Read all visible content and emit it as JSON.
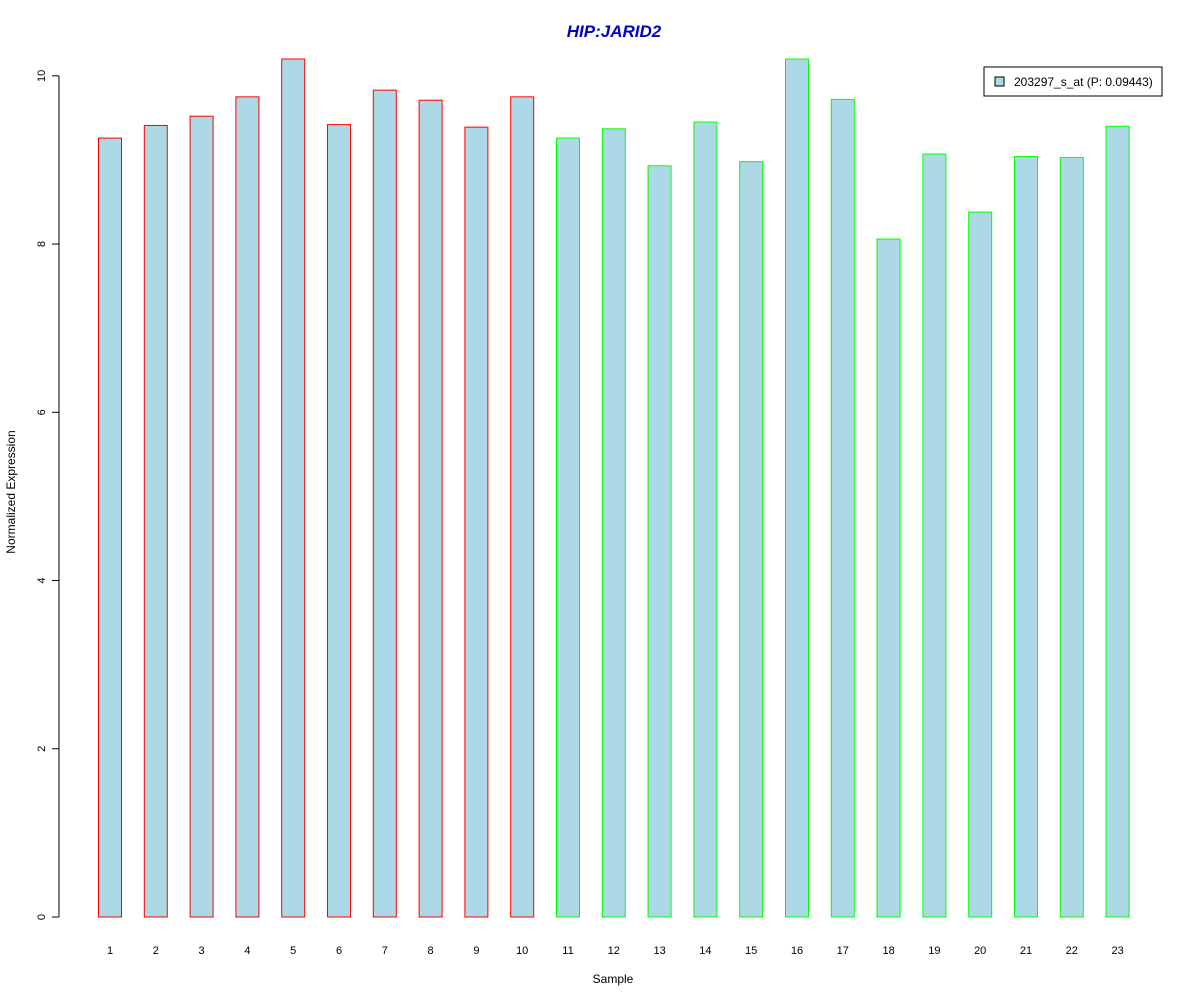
{
  "chart_data": {
    "type": "bar",
    "title": "HIP:JARID2",
    "xlabel": "Sample",
    "ylabel": "Normalized Expression",
    "categories": [
      "1",
      "2",
      "3",
      "4",
      "5",
      "6",
      "7",
      "8",
      "9",
      "10",
      "11",
      "12",
      "13",
      "14",
      "15",
      "16",
      "17",
      "18",
      "19",
      "20",
      "21",
      "22",
      "23"
    ],
    "series": [
      {
        "name": "203297_s_at (P: 0.09443)",
        "values": [
          9.26,
          9.41,
          9.52,
          9.75,
          10.2,
          9.42,
          9.83,
          9.71,
          9.39,
          9.75,
          9.26,
          9.37,
          8.93,
          9.45,
          8.98,
          10.2,
          9.72,
          8.06,
          9.07,
          8.38,
          9.04,
          9.03,
          9.4
        ]
      }
    ],
    "groups": [
      1,
      1,
      1,
      1,
      1,
      1,
      1,
      1,
      1,
      1,
      2,
      2,
      2,
      2,
      2,
      2,
      2,
      2,
      2,
      2,
      2,
      2,
      2
    ],
    "ylim": [
      0,
      10.2
    ],
    "yticks": [
      0,
      2,
      4,
      6,
      8,
      10
    ],
    "grid": false,
    "legend_position": "top-right",
    "colors": {
      "bar_fill": "#add8e6",
      "group1_border": "#ff0000",
      "group2_border": "#00ff00",
      "title": "#0000cc",
      "axis": "#000000"
    }
  }
}
